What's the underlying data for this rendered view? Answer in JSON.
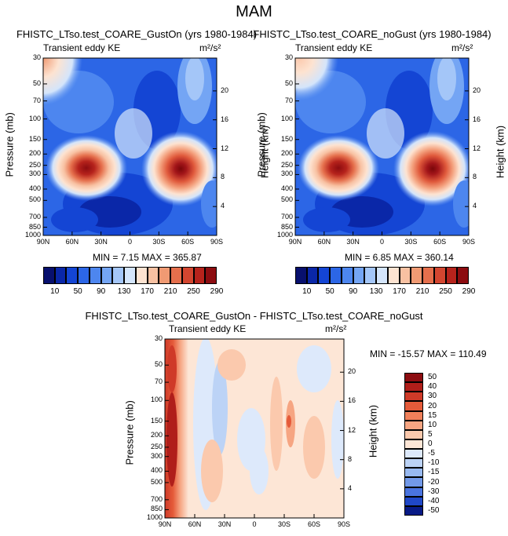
{
  "figure": {
    "title": "MAM"
  },
  "chart_data": [
    {
      "type": "heatmap",
      "title": "FHISTC_LTso.test_COARE_GustOn (yrs 1980-1984)",
      "left_string": "Transient eddy KE",
      "units_label": "m²/s²",
      "xlabel": "",
      "ylabel": "Pressure (mb)",
      "y2label": "Height (km)",
      "xticks": [
        "90N",
        "60N",
        "30N",
        "0",
        "30S",
        "60S",
        "90S"
      ],
      "yticks": [
        "30",
        "50",
        "70",
        "100",
        "150",
        "200",
        "250",
        "300",
        "400",
        "500",
        "700",
        "850",
        "1000"
      ],
      "y2ticks": [
        "20",
        "16",
        "12",
        "8",
        "4"
      ],
      "xlim": [
        90,
        -90
      ],
      "ylim": [
        1000,
        30
      ],
      "stats": "MIN =  7.15  MAX = 365.87",
      "colorbar_labels": [
        "10",
        "50",
        "90",
        "130",
        "170",
        "210",
        "250",
        "290"
      ],
      "maxima": [
        {
          "lat": 52,
          "p": 250,
          "value": 290
        },
        {
          "lat": -55,
          "p": 250,
          "value": 365.87
        }
      ]
    },
    {
      "type": "heatmap",
      "title": "FHISTC_LTso.test_COARE_noGust (yrs 1980-1984)",
      "left_string": "Transient eddy KE",
      "units_label": "m²/s²",
      "xlabel": "",
      "ylabel": "Pressure (mb)",
      "y2label": "Height (km)",
      "xticks": [
        "90N",
        "60N",
        "30N",
        "0",
        "30S",
        "60S",
        "90S"
      ],
      "yticks": [
        "30",
        "50",
        "70",
        "100",
        "150",
        "200",
        "250",
        "300",
        "400",
        "500",
        "700",
        "850",
        "1000"
      ],
      "y2ticks": [
        "20",
        "16",
        "12",
        "8",
        "4"
      ],
      "xlim": [
        90,
        -90
      ],
      "ylim": [
        1000,
        30
      ],
      "stats": "MIN =  6.85  MAX = 360.14",
      "colorbar_labels": [
        "10",
        "50",
        "90",
        "130",
        "170",
        "210",
        "250",
        "290"
      ],
      "maxima": [
        {
          "lat": 52,
          "p": 250,
          "value": 290
        },
        {
          "lat": -55,
          "p": 250,
          "value": 360.14
        }
      ]
    },
    {
      "type": "heatmap",
      "title": "FHISTC_LTso.test_COARE_GustOn - FHISTC_LTso.test_COARE_noGust",
      "left_string": "Transient eddy KE",
      "units_label": "m²/s²",
      "xlabel": "",
      "ylabel": "Pressure (mb)",
      "y2label": "Height (km)",
      "xticks": [
        "90N",
        "60N",
        "30N",
        "0",
        "30S",
        "60S",
        "90S"
      ],
      "yticks": [
        "30",
        "50",
        "70",
        "100",
        "150",
        "200",
        "250",
        "300",
        "400",
        "500",
        "700",
        "850",
        "1000"
      ],
      "y2ticks": [
        "20",
        "16",
        "12",
        "8",
        "4"
      ],
      "xlim": [
        90,
        -90
      ],
      "ylim": [
        1000,
        30
      ],
      "stats": "MIN = -15.57  MAX = 110.49",
      "colorbar_labels": [
        "50",
        "40",
        "30",
        "20",
        "15",
        "10",
        "5",
        "0",
        "-5",
        "-10",
        "-15",
        "-20",
        "-30",
        "-40",
        "-50"
      ],
      "maxima": [
        {
          "lat": 82,
          "p": 200,
          "value": 110.49
        }
      ]
    }
  ],
  "colors": {
    "kinetic_energy_scale": [
      "#08106e",
      "#0a27a8",
      "#1445d4",
      "#2c66e6",
      "#4d86ef",
      "#74a5f4",
      "#a4c6f8",
      "#d4e5fb",
      "#fde3d1",
      "#f8c1a2",
      "#f09a73",
      "#e56f4c",
      "#d34630",
      "#b6231c",
      "#8c0c10"
    ],
    "difference_scale_top_to_bottom": [
      "#8c0c10",
      "#b01e1a",
      "#cf3a28",
      "#e55b3a",
      "#f0805a",
      "#f6a582",
      "#fbc9ad",
      "#fde6d6",
      "#dde9fb",
      "#bcd3f6",
      "#98b9f0",
      "#7299e9",
      "#4a74e0",
      "#2048c8",
      "#081a86"
    ]
  }
}
